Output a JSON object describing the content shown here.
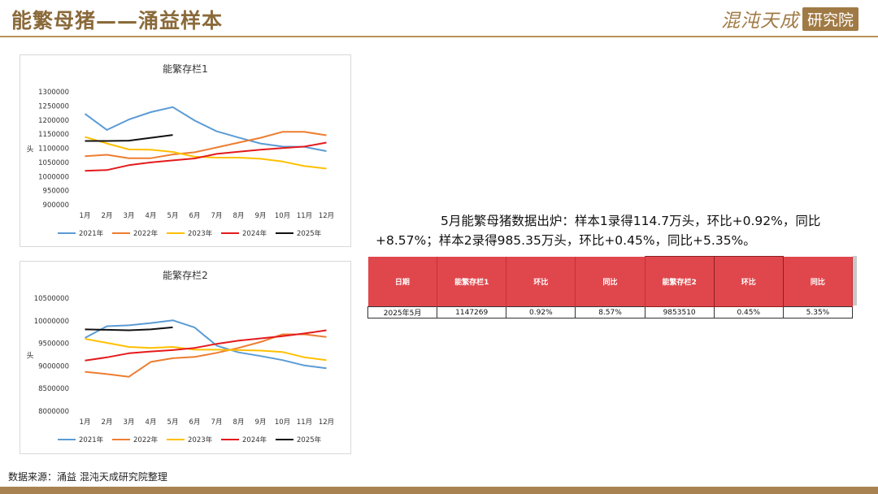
{
  "header": {
    "title": "能繁母猪——涌益样本",
    "logo_main": "混沌天成",
    "logo_box": "研究院"
  },
  "colors": {
    "2021": "#5b9bd5",
    "2022": "#ed7d31",
    "2023": "#ffc000",
    "2024": "#e41a1c",
    "2025": "#111111",
    "table_header": "#e0474c"
  },
  "chart_data": [
    {
      "type": "line",
      "title": "能繁存栏1",
      "ylabel": "头",
      "categories": [
        "1月",
        "2月",
        "3月",
        "4月",
        "5月",
        "6月",
        "7月",
        "8月",
        "9月",
        "10月",
        "11月",
        "12月"
      ],
      "ylim": [
        900000,
        1300000
      ],
      "yticks": [
        900000,
        950000,
        1000000,
        1050000,
        1100000,
        1150000,
        1200000,
        1250000,
        1300000
      ],
      "ytick_labels": [
        "900000",
        "950000",
        "1000000",
        "1050000",
        "1100000",
        "1150000",
        "1200000",
        "1250000",
        "1300000"
      ],
      "legend_position": "bottom",
      "series": [
        {
          "name": "2021年",
          "color": "#5b9bd5",
          "values": [
            1222000,
            1165000,
            1202000,
            1228000,
            1246000,
            1198000,
            1160000,
            1138000,
            1117000,
            1106000,
            1105000,
            1090000
          ]
        },
        {
          "name": "2022年",
          "color": "#ed7d31",
          "values": [
            1072000,
            1077000,
            1065000,
            1065000,
            1078000,
            1086000,
            1103000,
            1120000,
            1137000,
            1158000,
            1158000,
            1146000
          ]
        },
        {
          "name": "2023年",
          "color": "#ffc000",
          "values": [
            1140000,
            1117000,
            1096000,
            1095000,
            1087000,
            1070000,
            1067000,
            1067000,
            1063000,
            1053000,
            1037000,
            1028000
          ]
        },
        {
          "name": "2024年",
          "color": "#e41a1c",
          "values": [
            1020000,
            1023000,
            1040000,
            1050000,
            1057000,
            1064000,
            1080000,
            1088000,
            1095000,
            1101000,
            1106000,
            1120000
          ]
        },
        {
          "name": "2025年",
          "color": "#111111",
          "values": [
            1126000,
            1126000,
            1127000,
            1137000,
            1147269,
            null,
            null,
            null,
            null,
            null,
            null,
            null
          ]
        }
      ]
    },
    {
      "type": "line",
      "title": "能繁存栏2",
      "ylabel": "头",
      "categories": [
        "1月",
        "2月",
        "3月",
        "4月",
        "5月",
        "6月",
        "7月",
        "8月",
        "9月",
        "10月",
        "11月",
        "12月"
      ],
      "ylim": [
        8000000,
        10500000
      ],
      "yticks": [
        8000000,
        8500000,
        9000000,
        9500000,
        10000000,
        10500000
      ],
      "ytick_labels": [
        "8000000",
        "8500000",
        "9000000",
        "9500000",
        "10000000",
        "10500000"
      ],
      "legend_position": "bottom",
      "series": [
        {
          "name": "2021年",
          "color": "#5b9bd5",
          "values": [
            9620000,
            9880000,
            9900000,
            9950000,
            10010000,
            9850000,
            9450000,
            9300000,
            9220000,
            9130000,
            9010000,
            8950000
          ]
        },
        {
          "name": "2022年",
          "color": "#ed7d31",
          "values": [
            8870000,
            8820000,
            8760000,
            9090000,
            9170000,
            9200000,
            9290000,
            9400000,
            9530000,
            9700000,
            9700000,
            9640000
          ]
        },
        {
          "name": "2023年",
          "color": "#ffc000",
          "values": [
            9600000,
            9510000,
            9420000,
            9400000,
            9420000,
            9360000,
            9360000,
            9350000,
            9340000,
            9310000,
            9190000,
            9130000
          ]
        },
        {
          "name": "2024年",
          "color": "#e41a1c",
          "values": [
            9120000,
            9190000,
            9280000,
            9320000,
            9350000,
            9400000,
            9490000,
            9560000,
            9610000,
            9660000,
            9720000,
            9790000
          ]
        },
        {
          "name": "2025年",
          "color": "#111111",
          "values": [
            9810000,
            9800000,
            9790000,
            9810000,
            9853510,
            null,
            null,
            null,
            null,
            null,
            null,
            null
          ]
        }
      ]
    }
  ],
  "summary": "5月能繁母猪数据出炉：样本1录得114.7万头，环比+0.92%，同比+8.57%；样本2录得985.35万头，环比+0.45%，同比+5.35%。",
  "table": {
    "headers": [
      "日期",
      "能繁存栏1",
      "环比",
      "同比",
      "能繁存栏2",
      "环比",
      "同比"
    ],
    "row": [
      "2025年5月",
      "1147269",
      "0.92%",
      "8.57%",
      "9853510",
      "0.45%",
      "5.35%"
    ]
  },
  "footer": {
    "source": "数据来源：涌益 混沌天成研究院整理"
  }
}
